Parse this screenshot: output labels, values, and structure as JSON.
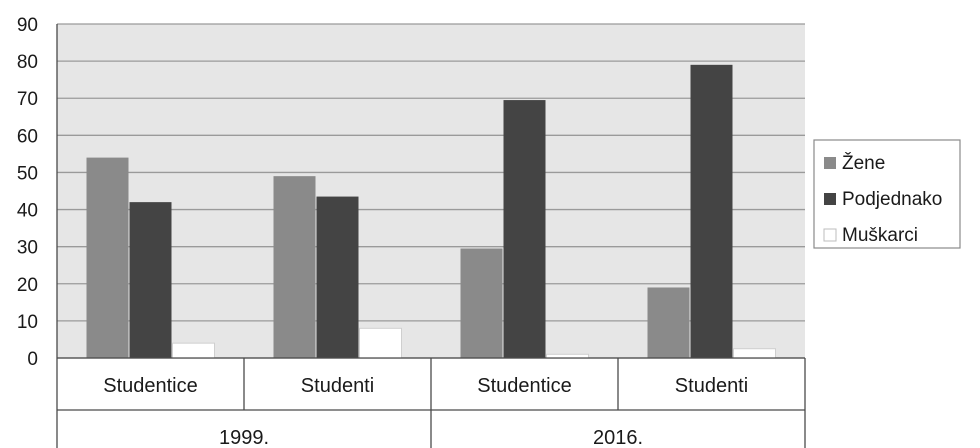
{
  "chart_data": {
    "type": "bar",
    "groups": [
      {
        "label": "1999.",
        "categories": [
          "Studentice",
          "Studenti"
        ]
      },
      {
        "label": "2016.",
        "categories": [
          "Studentice",
          "Studenti"
        ]
      }
    ],
    "categories": [
      "Studentice",
      "Studenti",
      "Studentice",
      "Studenti"
    ],
    "series": [
      {
        "name": "Žene",
        "values": [
          54,
          49,
          29.5,
          19
        ],
        "color": "#8a8a8a"
      },
      {
        "name": "Podjednako",
        "values": [
          42,
          43.5,
          69.5,
          79
        ],
        "color": "#444444"
      },
      {
        "name": "Muškarci",
        "values": [
          4,
          8,
          1,
          2.5
        ],
        "color": "#ffffff"
      }
    ],
    "ylim": [
      0,
      90
    ],
    "yticks": [
      0,
      10,
      20,
      30,
      40,
      50,
      60,
      70,
      80,
      90
    ],
    "grid": true,
    "legend": "right",
    "plot_background": "#e6e6e6",
    "grid_color": "#9a9a9a"
  }
}
